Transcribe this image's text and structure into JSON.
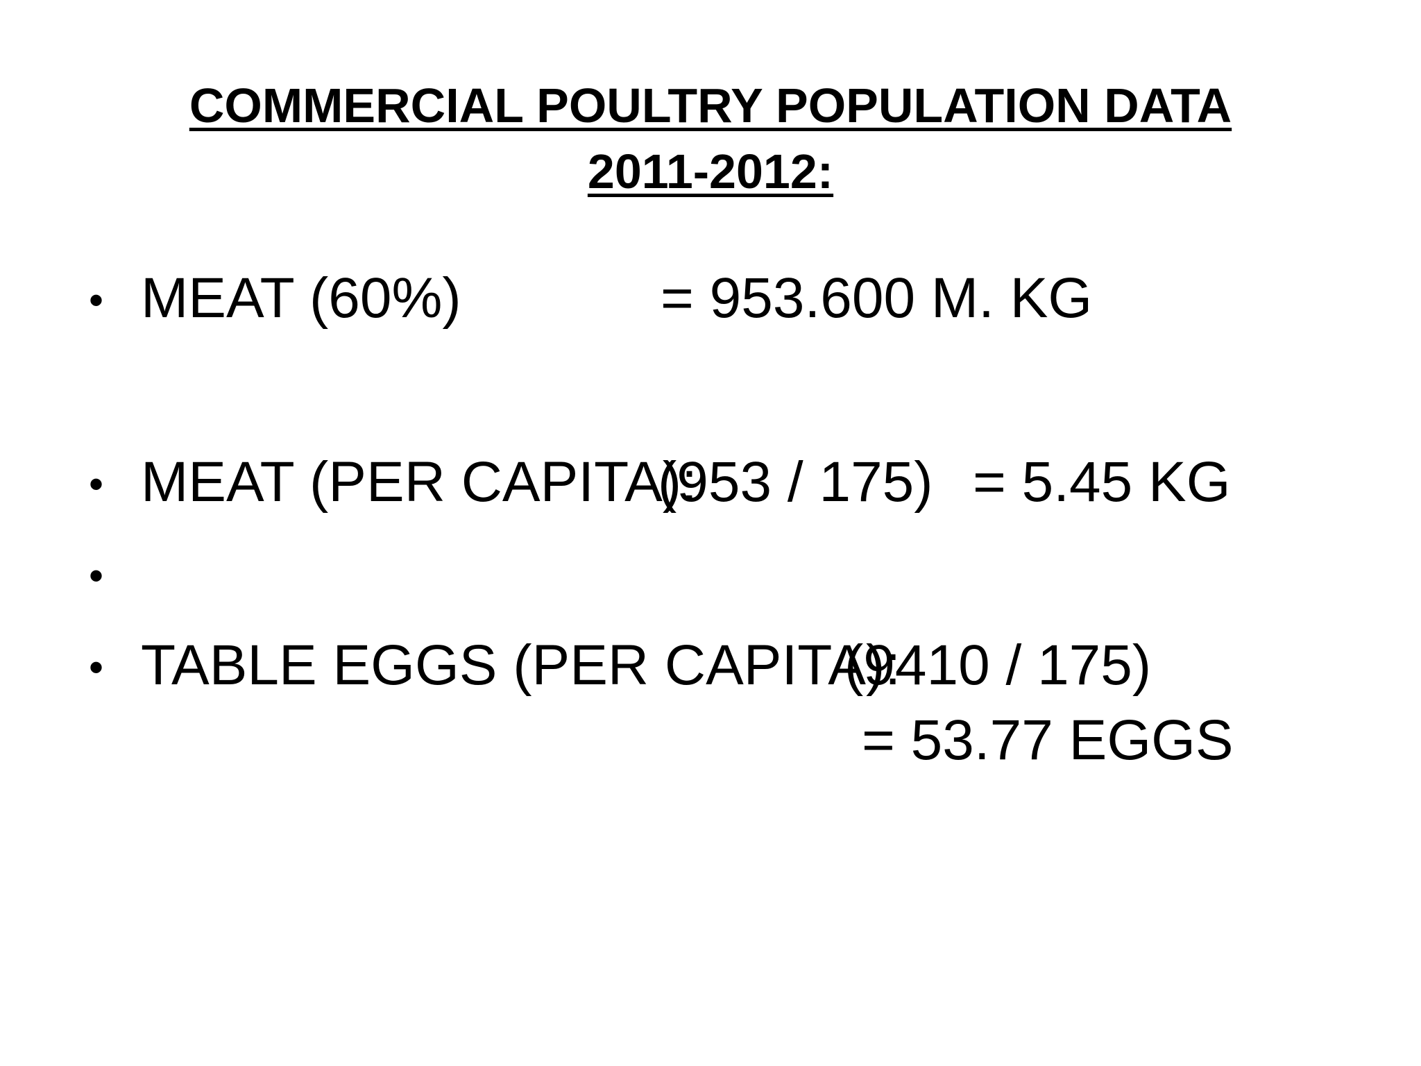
{
  "slide": {
    "title_line1": "COMMERCIAL POULTRY POPULATION DATA",
    "title_line2": "2011-2012:",
    "bullet_glyph": "•",
    "items": [
      {
        "label": "MEAT (60%)",
        "value": "= 953.600 M. KG"
      },
      {
        "label": "MEAT (PER CAPITA):",
        "formula": "(953 / 175)",
        "value": "= 5.45 KG"
      },
      {
        "label": ""
      },
      {
        "label": "TABLE EGGS (PER CAPITA):",
        "formula": "(9410 / 175)",
        "value": "= 53.77 EGGS"
      }
    ]
  }
}
